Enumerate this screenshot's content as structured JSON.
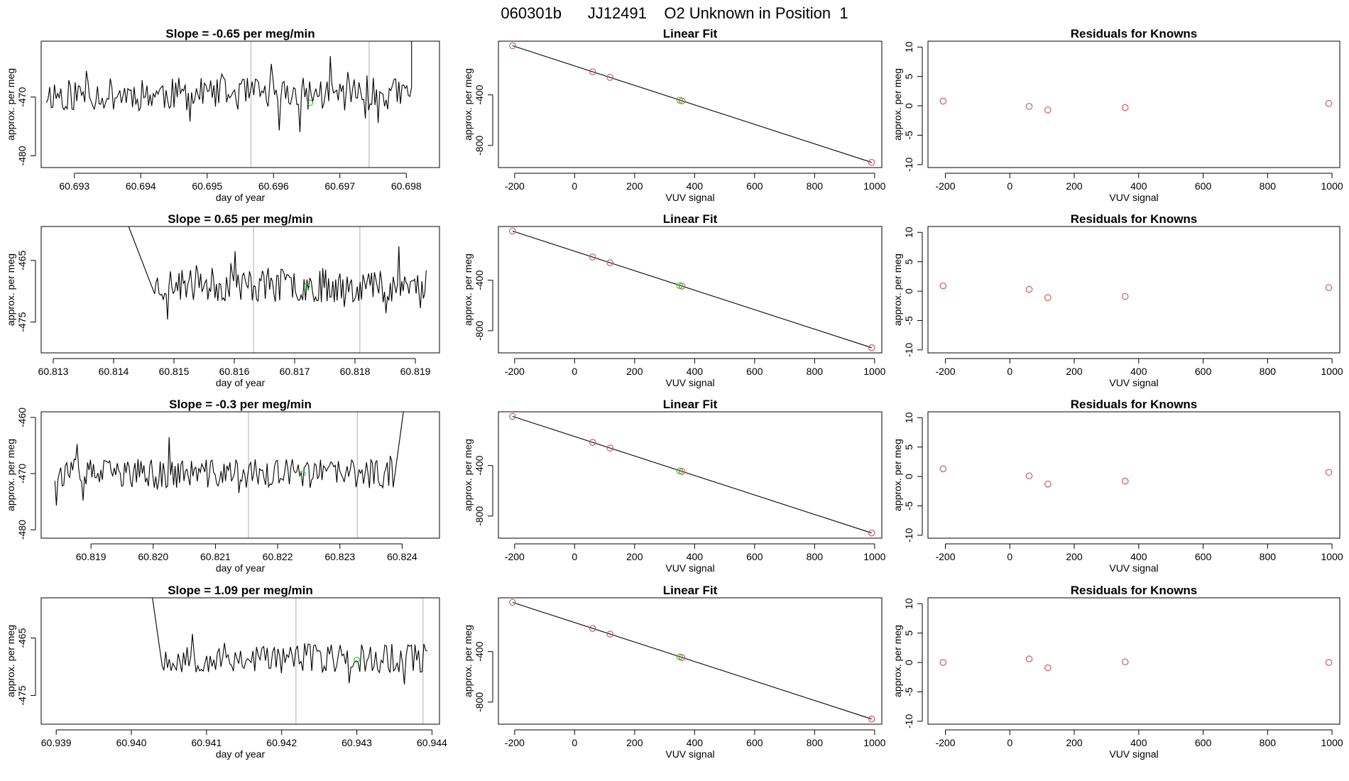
{
  "page": {
    "title": "060301b      JJ12491    O2 Unknown in Position  1"
  },
  "colors": {
    "trace": "#000000",
    "known_point": "#cd5c5c",
    "unknown_point": "#32cd32",
    "vline": "#bdbdbd",
    "frame": "#000000"
  },
  "chart_data": [
    {
      "type": "line",
      "title": "Slope =  -0.65  per meg/min",
      "xlabel": "day of year",
      "ylabel": "approx. per meg",
      "xlim": [
        60.6925,
        60.6985
      ],
      "ylim": [
        -482,
        -460.5
      ],
      "xticks": [
        60.693,
        60.694,
        60.695,
        60.696,
        60.697,
        60.698
      ],
      "xtick_labels": [
        "60.693",
        "60.694",
        "60.695",
        "60.696",
        "60.697",
        "60.698"
      ],
      "yticks": [
        -470,
        -480
      ],
      "ytick_labels": [
        "-470",
        "-480"
      ],
      "vlines": [
        60.69566,
        60.69744
      ],
      "noise": {
        "x_start": 60.69258,
        "x_end": 60.69808,
        "n": 230,
        "mean": -469.5,
        "amp": 2.8,
        "seed": 11
      },
      "edge": {
        "side": "right",
        "x_from": 60.69798,
        "y_from": -466,
        "x_to": 60.69808,
        "y_to": -460.5
      },
      "marker": {
        "x": 60.69655,
        "y": -471
      }
    },
    {
      "type": "scatter",
      "title": "Linear Fit",
      "xlabel": "VUV signal",
      "ylabel": "approx. per meg",
      "xlim": [
        -254,
        1024
      ],
      "ylim": [
        -975,
        25
      ],
      "xticks": [
        -200,
        0,
        200,
        400,
        600,
        800,
        1000
      ],
      "xtick_labels": [
        "-200",
        "0",
        "200",
        "400",
        "600",
        "800",
        "1000"
      ],
      "yticks": [
        -400,
        -800
      ],
      "ytick_labels": [
        "-400",
        "-800"
      ],
      "fit_line": {
        "x1": -207,
        "y1": -11,
        "x2": 990,
        "y2": -934
      },
      "knowns": [
        {
          "x": -207,
          "y": -11
        },
        {
          "x": 60,
          "y": -217
        },
        {
          "x": 118,
          "y": -262
        },
        {
          "x": 358,
          "y": -447
        },
        {
          "x": 990,
          "y": -934
        }
      ],
      "unknowns": [
        {
          "x": 350,
          "y": -442
        }
      ]
    },
    {
      "type": "scatter",
      "title": "Residuals for Knowns",
      "xlabel": "VUV signal",
      "ylabel": "approx. per meg",
      "xlim": [
        -254,
        1024
      ],
      "ylim": [
        -10.5,
        11
      ],
      "xticks": [
        -200,
        0,
        200,
        400,
        600,
        800,
        1000
      ],
      "xtick_labels": [
        "-200",
        "0",
        "200",
        "400",
        "600",
        "800",
        "1000"
      ],
      "yticks": [
        10,
        5,
        0,
        -5,
        -10
      ],
      "ytick_labels": [
        "10",
        "5",
        "0",
        "-5",
        "-10"
      ],
      "knowns": [
        {
          "x": -207,
          "y": 0.8
        },
        {
          "x": 60,
          "y": -0.1
        },
        {
          "x": 118,
          "y": -0.7
        },
        {
          "x": 358,
          "y": -0.3
        },
        {
          "x": 990,
          "y": 0.4
        }
      ]
    },
    {
      "type": "line",
      "title": "Slope =  0.65  per meg/min",
      "xlabel": "day of year",
      "ylabel": "approx. per meg",
      "xlim": [
        60.8128,
        60.8194
      ],
      "ylim": [
        -480,
        -459.5
      ],
      "xticks": [
        60.813,
        60.814,
        60.815,
        60.816,
        60.817,
        60.818,
        60.819
      ],
      "xtick_labels": [
        "60.813",
        "60.814",
        "60.815",
        "60.816",
        "60.817",
        "60.818",
        "60.819"
      ],
      "yticks": [
        -465,
        -475
      ],
      "ytick_labels": [
        "-465",
        "-475"
      ],
      "vlines": [
        60.81632,
        60.81808
      ],
      "noise": {
        "x_start": 60.81468,
        "x_end": 60.81918,
        "n": 190,
        "mean": -469,
        "amp": 2.8,
        "seed": 23
      },
      "edge": {
        "side": "left",
        "x_from": 60.81425,
        "y_from": -459.5,
        "x_to": 60.81468,
        "y_to": -466
      },
      "marker": {
        "x": 60.8172,
        "y": -469.2
      }
    },
    {
      "type": "scatter",
      "title": "Linear Fit",
      "xlabel": "VUV signal",
      "ylabel": "approx. per meg",
      "xlim": [
        -254,
        1024
      ],
      "ylim": [
        -975,
        25
      ],
      "xticks": [
        -200,
        0,
        200,
        400,
        600,
        800,
        1000
      ],
      "xtick_labels": [
        "-200",
        "0",
        "200",
        "400",
        "600",
        "800",
        "1000"
      ],
      "yticks": [
        -400,
        -800
      ],
      "ytick_labels": [
        "-400",
        "-800"
      ],
      "fit_line": {
        "x1": -207,
        "y1": -11,
        "x2": 990,
        "y2": -934
      },
      "knowns": [
        {
          "x": -207,
          "y": -11
        },
        {
          "x": 60,
          "y": -217
        },
        {
          "x": 118,
          "y": -262
        },
        {
          "x": 358,
          "y": -447
        },
        {
          "x": 990,
          "y": -934
        }
      ],
      "unknowns": [
        {
          "x": 350,
          "y": -442
        }
      ]
    },
    {
      "type": "scatter",
      "title": "Residuals for Knowns",
      "xlabel": "VUV signal",
      "ylabel": "approx. per meg",
      "xlim": [
        -254,
        1024
      ],
      "ylim": [
        -10.5,
        11
      ],
      "xticks": [
        -200,
        0,
        200,
        400,
        600,
        800,
        1000
      ],
      "xtick_labels": [
        "-200",
        "0",
        "200",
        "400",
        "600",
        "800",
        "1000"
      ],
      "yticks": [
        10,
        5,
        0,
        -5,
        -10
      ],
      "ytick_labels": [
        "10",
        "5",
        "0",
        "-5",
        "-10"
      ],
      "knowns": [
        {
          "x": -207,
          "y": 0.9
        },
        {
          "x": 60,
          "y": 0.3
        },
        {
          "x": 118,
          "y": -1.1
        },
        {
          "x": 358,
          "y": -0.9
        },
        {
          "x": 990,
          "y": 0.6
        }
      ]
    },
    {
      "type": "line",
      "title": "Slope =  -0.3  per meg/min",
      "xlabel": "day of year",
      "ylabel": "approx. per meg",
      "xlim": [
        60.8182,
        60.8246
      ],
      "ylim": [
        -481.5,
        -459
      ],
      "xticks": [
        60.819,
        60.82,
        60.821,
        60.822,
        60.823,
        60.824
      ],
      "xtick_labels": [
        "60.819",
        "60.820",
        "60.821",
        "60.822",
        "60.823",
        "60.824"
      ],
      "yticks": [
        -460,
        -470,
        -480
      ],
      "ytick_labels": [
        "-460",
        "-470",
        "-480"
      ],
      "vlines": [
        60.82153,
        60.82328
      ],
      "noise": {
        "x_start": 60.81842,
        "x_end": 60.82388,
        "n": 230,
        "mean": -470,
        "amp": 2.6,
        "seed": 37
      },
      "edge": {
        "side": "right",
        "x_from": 60.82388,
        "y_from": -469,
        "x_to": 60.82402,
        "y_to": -459
      },
      "marker": {
        "x": 60.8224,
        "y": -470
      }
    },
    {
      "type": "scatter",
      "title": "Linear Fit",
      "xlabel": "VUV signal",
      "ylabel": "approx. per meg",
      "xlim": [
        -254,
        1024
      ],
      "ylim": [
        -975,
        25
      ],
      "xticks": [
        -200,
        0,
        200,
        400,
        600,
        800,
        1000
      ],
      "xtick_labels": [
        "-200",
        "0",
        "200",
        "400",
        "600",
        "800",
        "1000"
      ],
      "yticks": [
        -400,
        -800
      ],
      "ytick_labels": [
        "-400",
        "-800"
      ],
      "fit_line": {
        "x1": -207,
        "y1": -11,
        "x2": 990,
        "y2": -934
      },
      "knowns": [
        {
          "x": -207,
          "y": -11
        },
        {
          "x": 60,
          "y": -217
        },
        {
          "x": 118,
          "y": -262
        },
        {
          "x": 358,
          "y": -447
        },
        {
          "x": 990,
          "y": -934
        }
      ],
      "unknowns": [
        {
          "x": 350,
          "y": -442
        }
      ]
    },
    {
      "type": "scatter",
      "title": "Residuals for Knowns",
      "xlabel": "VUV signal",
      "ylabel": "approx. per meg",
      "xlim": [
        -254,
        1024
      ],
      "ylim": [
        -10.5,
        11
      ],
      "xticks": [
        -200,
        0,
        200,
        400,
        600,
        800,
        1000
      ],
      "xtick_labels": [
        "-200",
        "0",
        "200",
        "400",
        "600",
        "800",
        "1000"
      ],
      "yticks": [
        10,
        5,
        0,
        -5,
        -10
      ],
      "ytick_labels": [
        "10",
        "5",
        "0",
        "-5",
        "-10"
      ],
      "knowns": [
        {
          "x": -207,
          "y": 1.3
        },
        {
          "x": 60,
          "y": 0.1
        },
        {
          "x": 118,
          "y": -1.3
        },
        {
          "x": 358,
          "y": -0.8
        },
        {
          "x": 990,
          "y": 0.7
        }
      ]
    },
    {
      "type": "line",
      "title": "Slope =  1.09  per meg/min",
      "xlabel": "day of year",
      "ylabel": "approx. per meg",
      "xlim": [
        60.9388,
        60.9441
      ],
      "ylim": [
        -480,
        -458
      ],
      "xticks": [
        60.939,
        60.94,
        60.941,
        60.942,
        60.943,
        60.944
      ],
      "xtick_labels": [
        "60.939",
        "60.940",
        "60.941",
        "60.942",
        "60.943",
        "60.944"
      ],
      "yticks": [
        -465,
        -475
      ],
      "ytick_labels": [
        "-465",
        "-475"
      ],
      "vlines": [
        60.94219,
        60.94388
      ],
      "noise": {
        "x_start": 60.94041,
        "x_end": 60.94394,
        "n": 150,
        "mean": -468.5,
        "amp": 2.7,
        "seed": 53
      },
      "edge": {
        "side": "left",
        "x_from": 60.94028,
        "y_from": -458,
        "x_to": 60.94041,
        "y_to": -463.5
      },
      "marker": {
        "x": 60.943,
        "y": -468.8
      }
    },
    {
      "type": "scatter",
      "title": "Linear Fit",
      "xlabel": "VUV signal",
      "ylabel": "approx. per meg",
      "xlim": [
        -254,
        1024
      ],
      "ylim": [
        -975,
        25
      ],
      "xticks": [
        -200,
        0,
        200,
        400,
        600,
        800,
        1000
      ],
      "xtick_labels": [
        "-200",
        "0",
        "200",
        "400",
        "600",
        "800",
        "1000"
      ],
      "yticks": [
        -400,
        -800
      ],
      "ytick_labels": [
        "-400",
        "-800"
      ],
      "fit_line": {
        "x1": -207,
        "y1": -11,
        "x2": 990,
        "y2": -934
      },
      "knowns": [
        {
          "x": -207,
          "y": -11
        },
        {
          "x": 60,
          "y": -217
        },
        {
          "x": 118,
          "y": -262
        },
        {
          "x": 358,
          "y": -447
        },
        {
          "x": 990,
          "y": -934
        }
      ],
      "unknowns": [
        {
          "x": 350,
          "y": -442
        }
      ]
    },
    {
      "type": "scatter",
      "title": "Residuals for Knowns",
      "xlabel": "VUV signal",
      "ylabel": "approx. per meg",
      "xlim": [
        -254,
        1024
      ],
      "ylim": [
        -10.5,
        11
      ],
      "xticks": [
        -200,
        0,
        200,
        400,
        600,
        800,
        1000
      ],
      "xtick_labels": [
        "-200",
        "0",
        "200",
        "400",
        "600",
        "800",
        "1000"
      ],
      "yticks": [
        10,
        5,
        0,
        -5,
        -10
      ],
      "ytick_labels": [
        "10",
        "5",
        "0",
        "-5",
        "-10"
      ],
      "knowns": [
        {
          "x": -207,
          "y": 0.0
        },
        {
          "x": 60,
          "y": 0.6
        },
        {
          "x": 118,
          "y": -0.9
        },
        {
          "x": 358,
          "y": 0.1
        },
        {
          "x": 990,
          "y": 0.0
        }
      ]
    }
  ]
}
